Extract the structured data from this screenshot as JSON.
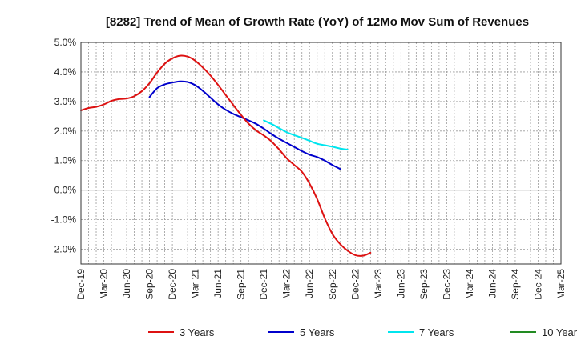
{
  "chart_data": {
    "type": "line",
    "title": "[8282]  Trend of Mean of Growth Rate (YoY) of 12Mo Mov Sum of Revenues",
    "xlabel": "",
    "ylabel": "",
    "ylim": [
      -2.5,
      5.0
    ],
    "y_ticks": [
      5.0,
      4.0,
      3.0,
      2.0,
      1.0,
      0.0,
      -1.0,
      -2.0
    ],
    "y_tick_labels": [
      "5.0%",
      "4.0%",
      "3.0%",
      "2.0%",
      "1.0%",
      "0.0%",
      "-1.0%",
      "-2.0%"
    ],
    "x_tick_labels": [
      "Dec-19",
      "Mar-20",
      "Jun-20",
      "Sep-20",
      "Dec-20",
      "Mar-21",
      "Jun-21",
      "Sep-21",
      "Dec-21",
      "Mar-22",
      "Jun-22",
      "Sep-22",
      "Dec-22",
      "Mar-23",
      "Jun-23",
      "Sep-23",
      "Dec-23",
      "Mar-24",
      "Jun-24",
      "Sep-24",
      "Dec-24",
      "Mar-25"
    ],
    "grid": true,
    "legend_position": "bottom",
    "series": [
      {
        "name": "3 Years",
        "color": "#dd1111",
        "start_index": 0,
        "values": [
          2.7,
          2.78,
          2.82,
          2.9,
          3.02,
          3.08,
          3.1,
          3.18,
          3.35,
          3.62,
          3.98,
          4.28,
          4.46,
          4.55,
          4.52,
          4.38,
          4.15,
          3.88,
          3.56,
          3.22,
          2.88,
          2.55,
          2.25,
          2.02,
          1.85,
          1.65,
          1.38,
          1.08,
          0.85,
          0.62,
          0.22,
          -0.3,
          -0.95,
          -1.48,
          -1.82,
          -2.05,
          -2.2,
          -2.22,
          -2.12
        ]
      },
      {
        "name": "5 Years",
        "color": "#0000cc",
        "start_index": 9,
        "values": [
          3.15,
          3.45,
          3.58,
          3.64,
          3.68,
          3.66,
          3.55,
          3.36,
          3.13,
          2.9,
          2.72,
          2.58,
          2.47,
          2.36,
          2.24,
          2.08,
          1.9,
          1.74,
          1.6,
          1.46,
          1.32,
          1.2,
          1.12,
          1.0,
          0.85,
          0.72
        ]
      },
      {
        "name": "7 Years",
        "color": "#00e5ee",
        "start_index": 24,
        "values": [
          2.36,
          2.24,
          2.1,
          1.96,
          1.86,
          1.77,
          1.67,
          1.57,
          1.52,
          1.47,
          1.41,
          1.37
        ]
      },
      {
        "name": "10 Years",
        "color": "#228b22",
        "start_index": 0,
        "values": []
      }
    ]
  }
}
